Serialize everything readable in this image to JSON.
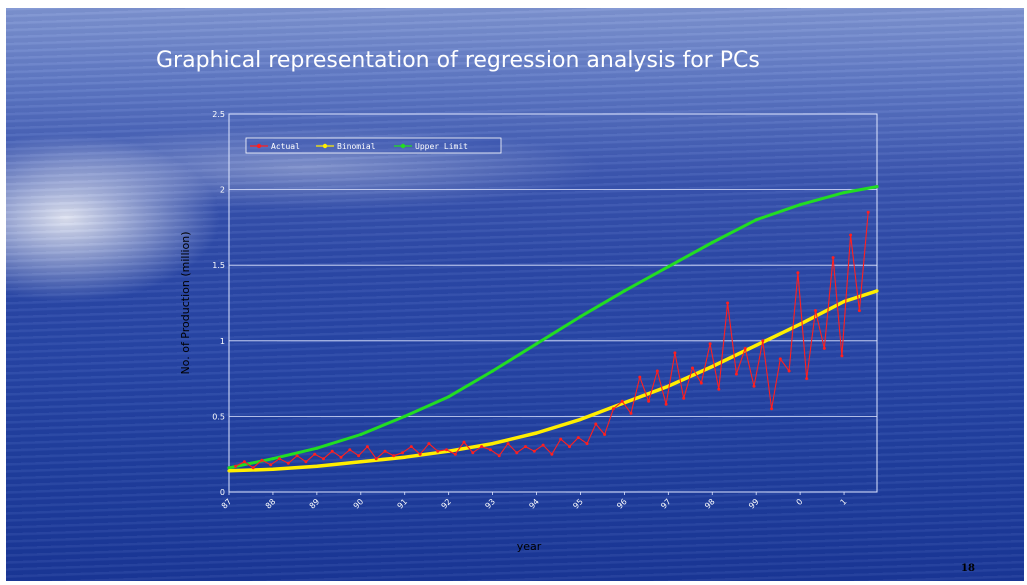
{
  "slide": {
    "title": "Graphical representation of regression analysis for PCs",
    "page_number": "18"
  },
  "chart_data": {
    "type": "line",
    "title": "",
    "xlabel": "year",
    "ylabel": "No. of Production (million)",
    "ylim": [
      0,
      2.5
    ],
    "yticks": [
      "0",
      "0.5",
      "1",
      "1.5",
      "2",
      "2.5"
    ],
    "xticks": [
      "87",
      "88",
      "89",
      "90",
      "91",
      "92",
      "93",
      "94",
      "95",
      "96",
      "97",
      "98",
      "99",
      "0",
      "1"
    ],
    "xrange": [
      1987,
      2001.75
    ],
    "legend_position": "top-left",
    "grid": true,
    "colors": {
      "actual": "#ff1f1f",
      "binomial": "#ffee00",
      "upper": "#22dd22"
    },
    "series": [
      {
        "name": "Actual",
        "x": [
          1987.15,
          1987.35,
          1987.55,
          1987.75,
          1987.95,
          1988.15,
          1988.35,
          1988.55,
          1988.75,
          1988.95,
          1989.15,
          1989.35,
          1989.55,
          1989.75,
          1989.95,
          1990.15,
          1990.35,
          1990.55,
          1990.75,
          1990.95,
          1991.15,
          1991.35,
          1991.55,
          1991.75,
          1991.95,
          1992.15,
          1992.35,
          1992.55,
          1992.75,
          1992.95,
          1993.15,
          1993.35,
          1993.55,
          1993.75,
          1993.95,
          1994.15,
          1994.35,
          1994.55,
          1994.75,
          1994.95,
          1995.15,
          1995.35,
          1995.55,
          1995.75,
          1995.95,
          1996.15,
          1996.35,
          1996.55,
          1996.75,
          1996.95,
          1997.15,
          1997.35,
          1997.55,
          1997.75,
          1997.95,
          1998.15,
          1998.35,
          1998.55,
          1998.75,
          1998.95,
          1999.15,
          1999.35,
          1999.55,
          1999.75,
          1999.95,
          2000.15,
          2000.35,
          2000.55,
          2000.75,
          2000.95,
          2001.15,
          2001.35,
          2001.55
        ],
        "values": [
          0.17,
          0.2,
          0.16,
          0.21,
          0.18,
          0.22,
          0.19,
          0.24,
          0.2,
          0.25,
          0.22,
          0.27,
          0.23,
          0.28,
          0.24,
          0.3,
          0.22,
          0.27,
          0.24,
          0.26,
          0.3,
          0.25,
          0.32,
          0.27,
          0.28,
          0.25,
          0.33,
          0.26,
          0.3,
          0.28,
          0.24,
          0.32,
          0.26,
          0.3,
          0.27,
          0.31,
          0.25,
          0.35,
          0.3,
          0.36,
          0.32,
          0.45,
          0.38,
          0.55,
          0.6,
          0.52,
          0.76,
          0.6,
          0.8,
          0.58,
          0.92,
          0.62,
          0.82,
          0.72,
          0.98,
          0.68,
          1.25,
          0.78,
          0.95,
          0.7,
          1.0,
          0.55,
          0.88,
          0.8,
          1.45,
          0.75,
          1.2,
          0.95,
          1.55,
          0.9,
          1.7,
          1.2,
          1.85
        ]
      },
      {
        "name": "Binomial",
        "x": [
          1987,
          1988,
          1989,
          1990,
          1991,
          1992,
          1993,
          1994,
          1995,
          1996,
          1997,
          1998,
          1999,
          2000,
          2001,
          2001.75
        ],
        "values": [
          0.14,
          0.15,
          0.17,
          0.2,
          0.23,
          0.27,
          0.32,
          0.39,
          0.48,
          0.59,
          0.7,
          0.83,
          0.97,
          1.11,
          1.26,
          1.33
        ]
      },
      {
        "name": "Upper Limit",
        "x": [
          1987,
          1988,
          1989,
          1990,
          1991,
          1992,
          1993,
          1994,
          1995,
          1996,
          1997,
          1998,
          1999,
          2000,
          2001,
          2001.75
        ],
        "values": [
          0.16,
          0.22,
          0.29,
          0.38,
          0.5,
          0.63,
          0.8,
          0.98,
          1.16,
          1.33,
          1.49,
          1.65,
          1.8,
          1.9,
          1.98,
          2.02
        ]
      }
    ]
  }
}
